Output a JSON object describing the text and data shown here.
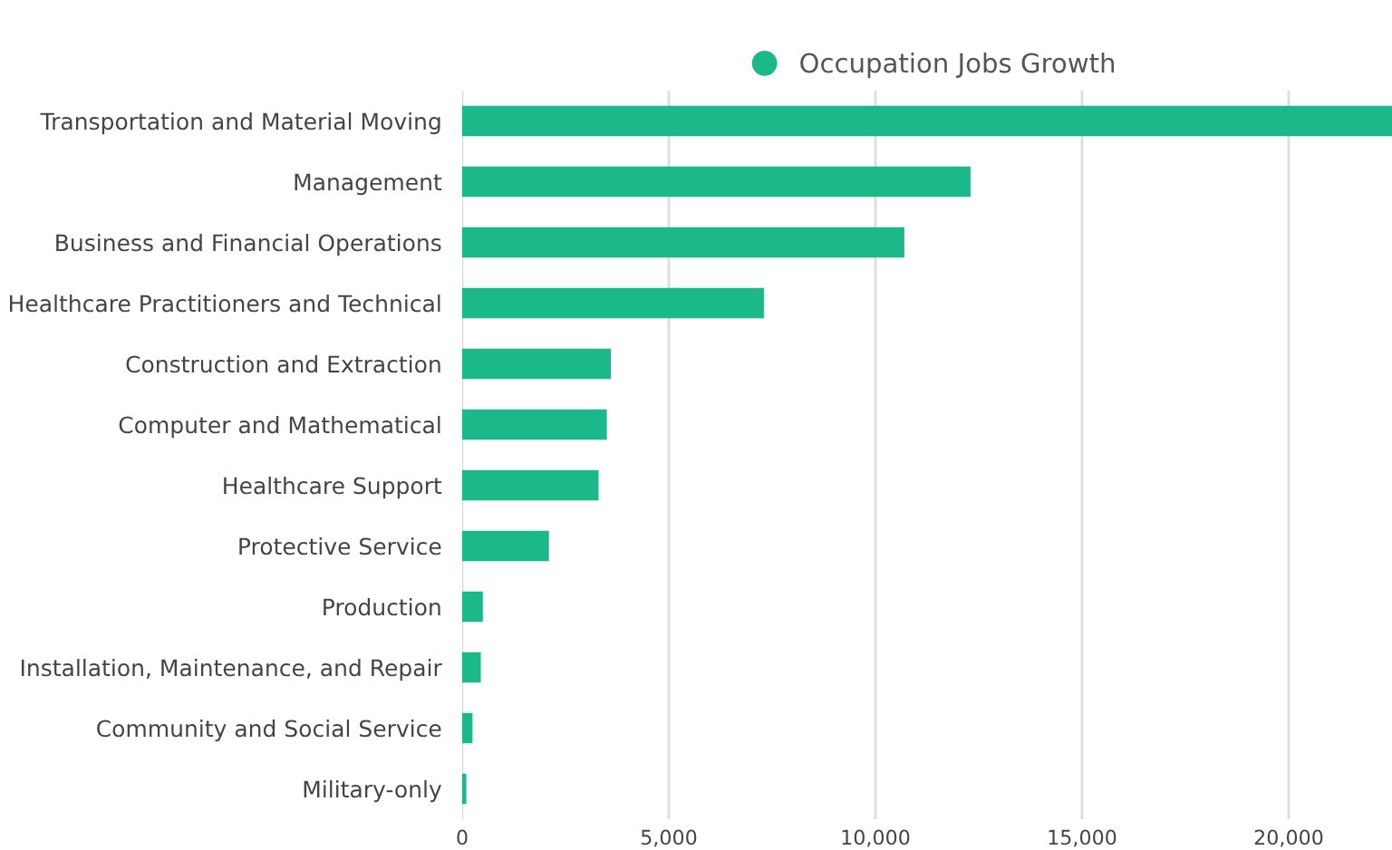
{
  "chart_data": {
    "type": "bar",
    "orientation": "horizontal",
    "categories": [
      "Transportation and Material Moving",
      "Management",
      "Business and Financial Operations",
      "Healthcare Practitioners and Technical",
      "Construction and Extraction",
      "Computer and Mathematical",
      "Healthcare Support",
      "Protective Service",
      "Production",
      "Installation, Maintenance, and Repair",
      "Community and Social Service",
      "Military-only"
    ],
    "series": [
      {
        "name": "Occupation Jobs Growth",
        "color": "#1bb98a",
        "values": [
          22500,
          12300,
          10700,
          7300,
          3600,
          3500,
          3300,
          2100,
          500,
          450,
          250,
          100
        ]
      }
    ],
    "xlim": [
      0,
      22500
    ],
    "xticks": [
      0,
      {
        "value": 5000,
        "label": "5,000"
      },
      {
        "value": 10000,
        "label": "10,000"
      },
      {
        "value": 15000,
        "label": "15,000"
      },
      {
        "value": 20000,
        "label": "20,000"
      }
    ],
    "grid": "x",
    "legend": "top"
  }
}
